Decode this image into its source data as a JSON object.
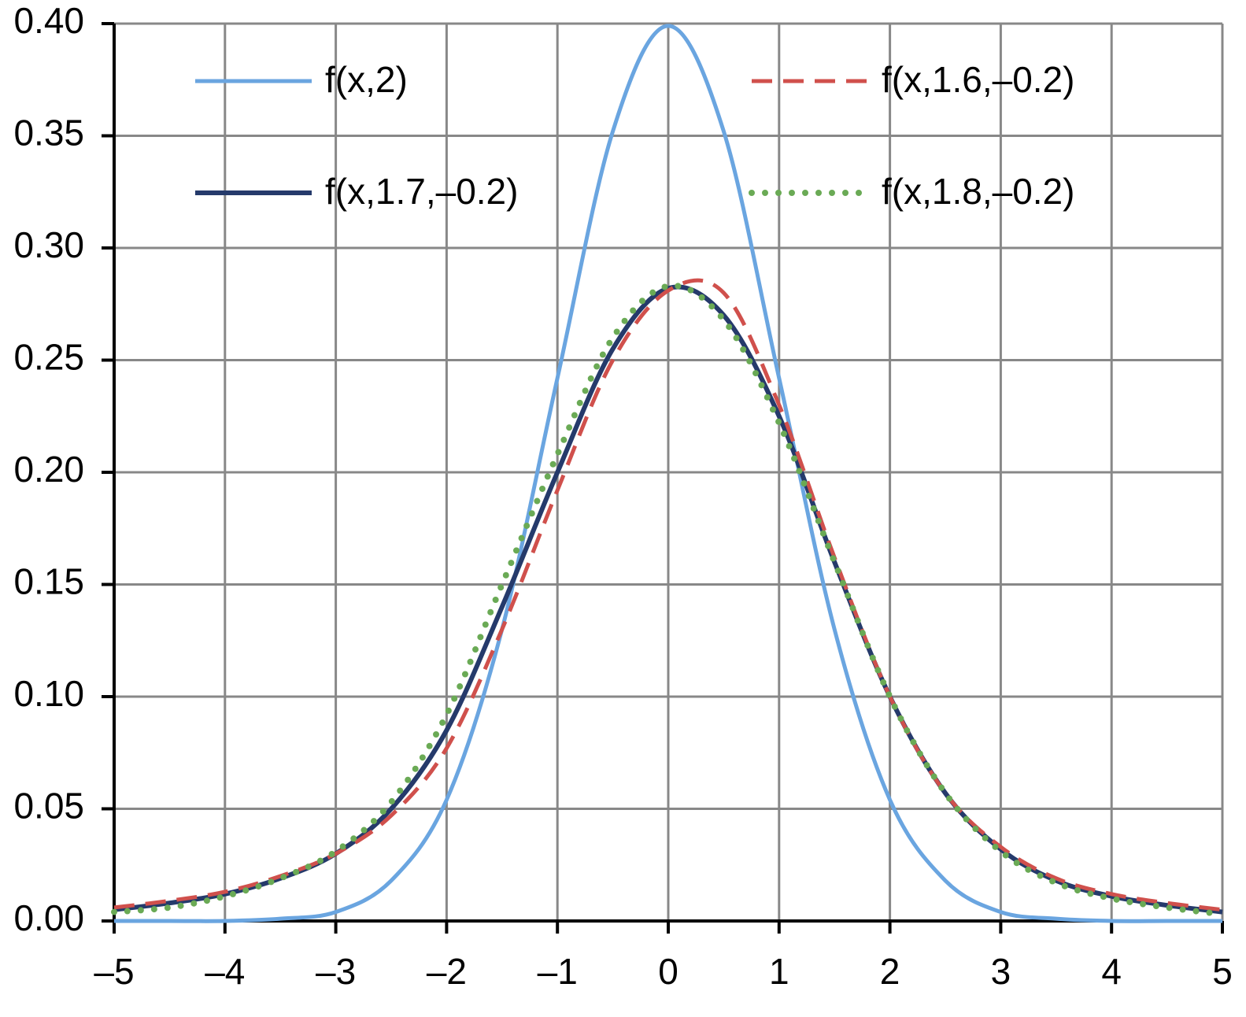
{
  "chart_data": {
    "type": "line",
    "x": [
      -5,
      -4.5,
      -4,
      -3.5,
      -3,
      -2.5,
      -2,
      -1.5,
      -1,
      -0.5,
      0,
      0.5,
      1,
      1.5,
      2,
      2.5,
      3,
      3.5,
      4,
      4.5,
      5
    ],
    "series": [
      {
        "name": "f(x,2)",
        "color": "#6aa5e0",
        "style": "solid",
        "values": [
          0,
          0,
          0,
          0.001,
          0.004,
          0.018,
          0.054,
          0.13,
          0.242,
          0.352,
          0.399,
          0.352,
          0.242,
          0.13,
          0.054,
          0.018,
          0.004,
          0.001,
          0,
          0,
          0
        ]
      },
      {
        "name": "f(x,1.6,–0.2)",
        "color": "#d0504c",
        "style": "dashed",
        "values": [
          0.006,
          0.009,
          0.013,
          0.02,
          0.03,
          0.047,
          0.077,
          0.13,
          0.192,
          0.25,
          0.281,
          0.28,
          0.23,
          0.162,
          0.1,
          0.057,
          0.033,
          0.019,
          0.012,
          0.008,
          0.005
        ]
      },
      {
        "name": "f(x,1.7,–0.2)",
        "color": "#253a6b",
        "style": "solid",
        "values": [
          0.005,
          0.008,
          0.012,
          0.019,
          0.03,
          0.05,
          0.085,
          0.14,
          0.2,
          0.255,
          0.282,
          0.27,
          0.225,
          0.16,
          0.1,
          0.057,
          0.032,
          0.018,
          0.011,
          0.007,
          0.004
        ]
      },
      {
        "name": "f(x,1.8,–0.2)",
        "color": "#6aaa55",
        "style": "dotted",
        "values": [
          0.004,
          0.006,
          0.011,
          0.019,
          0.031,
          0.053,
          0.092,
          0.15,
          0.208,
          0.26,
          0.283,
          0.268,
          0.222,
          0.16,
          0.1,
          0.057,
          0.031,
          0.017,
          0.01,
          0.006,
          0.003
        ]
      }
    ],
    "xlim": [
      -5,
      5
    ],
    "xticks": [
      {
        "value": -5,
        "label": "–5"
      },
      {
        "value": -4,
        "label": "–4"
      },
      {
        "value": -3,
        "label": "–3"
      },
      {
        "value": -2,
        "label": "–2"
      },
      {
        "value": -1,
        "label": "–1"
      },
      0,
      1,
      2,
      3,
      4,
      5
    ],
    "ylim": [
      0,
      0.4
    ],
    "yticks": [
      {
        "value": 0,
        "label": "0.00"
      },
      {
        "value": 0.05,
        "label": "0.05"
      },
      {
        "value": 0.1,
        "label": "0.10"
      },
      {
        "value": 0.15,
        "label": "0.15"
      },
      {
        "value": 0.2,
        "label": "0.20"
      },
      {
        "value": 0.25,
        "label": "0.25"
      },
      {
        "value": 0.3,
        "label": "0.30"
      },
      {
        "value": 0.35,
        "label": "0.35"
      },
      {
        "value": 0.4,
        "label": "0.40"
      }
    ],
    "grid": true
  }
}
